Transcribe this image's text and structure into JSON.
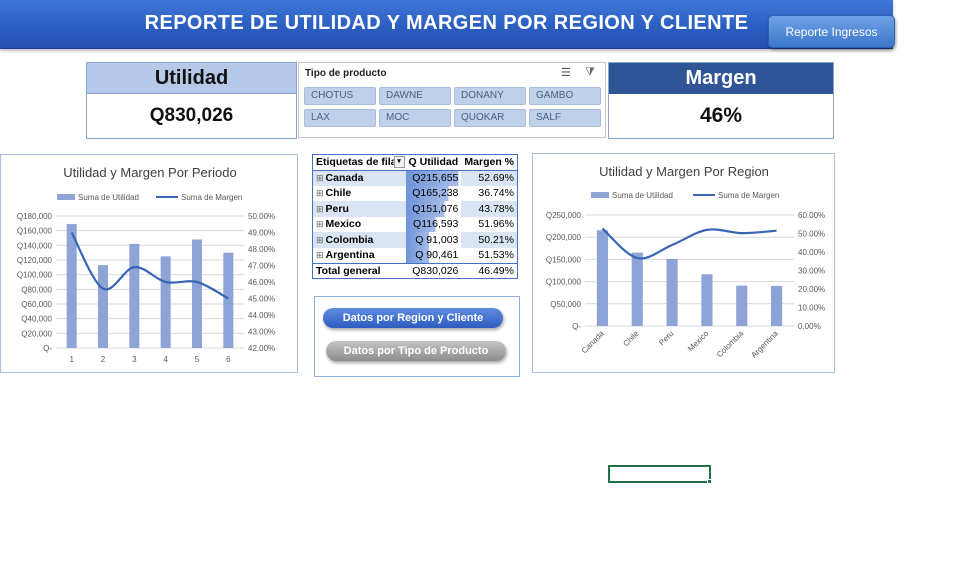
{
  "header": {
    "title": "REPORTE DE UTILIDAD Y MARGEN POR REGION Y CLIENTE",
    "button_label": "Reporte Ingresos"
  },
  "kpi": {
    "utilidad_label": "Utilidad",
    "utilidad_value": "Q830,026",
    "margen_label": "Margen",
    "margen_value": "46%"
  },
  "slicer": {
    "title": "Tipo de producto",
    "items": [
      "CHOTUS",
      "DAWNE",
      "DONANY",
      "GAMBO",
      "LAX",
      "MOC",
      "QUOKAR",
      "SALF"
    ]
  },
  "pivot": {
    "headers": [
      "Etiquetas de fila",
      "Q Utilidad",
      "Margen %"
    ],
    "rows": [
      {
        "label": "Canada",
        "utilidad": "Q215,655",
        "margen": "52.69%",
        "pct": 0.95
      },
      {
        "label": "Chile",
        "utilidad": "Q165,238",
        "margen": "36.74%",
        "pct": 0.77
      },
      {
        "label": "Peru",
        "utilidad": "Q151,076",
        "margen": "43.78%",
        "pct": 0.7
      },
      {
        "label": "Mexico",
        "utilidad": "Q116,593",
        "margen": "51.96%",
        "pct": 0.54
      },
      {
        "label": "Colombia",
        "utilidad": "Q  91,003",
        "margen": "50.21%",
        "pct": 0.42
      },
      {
        "label": "Argentina",
        "utilidad": "Q  90,461",
        "margen": "51.53%",
        "pct": 0.42
      }
    ],
    "total": {
      "label": "Total general",
      "utilidad": "Q830,026",
      "margen": "46.49%"
    }
  },
  "buttons": {
    "region": "Datos por Region y Cliente",
    "producto": "Datos por Tipo de Producto"
  },
  "chart_data": [
    {
      "type": "bar",
      "title": "Utilidad y Margen Por Periodo",
      "categories": [
        "1",
        "2",
        "3",
        "4",
        "5",
        "6"
      ],
      "series": [
        {
          "name": "Suma de Utilidad",
          "values": [
            169000,
            113000,
            142000,
            125000,
            148000,
            130000
          ],
          "axis": "left"
        },
        {
          "name": "Suma de Margen",
          "values": [
            49.0,
            45.6,
            46.9,
            46.0,
            46.0,
            45.0
          ],
          "axis": "right",
          "kind": "line"
        }
      ],
      "ylim": [
        0,
        180000
      ],
      "y2lim": [
        42.0,
        50.0
      ],
      "yticks": [
        "Q180,000",
        "Q160,000",
        "Q140,000",
        "Q120,000",
        "Q100,000",
        "Q80,000",
        "Q60,000",
        "Q40,000",
        "Q20,000",
        "Q-"
      ],
      "y2ticks": [
        "50.00%",
        "49.00%",
        "48.00%",
        "47.00%",
        "46.00%",
        "45.00%",
        "44.00%",
        "43.00%",
        "42.00%"
      ],
      "legend": "top",
      "colors": {
        "bar": "#8ea3d6",
        "line": "#3865b5"
      }
    },
    {
      "type": "bar",
      "title": "Utilidad y Margen Por Region",
      "categories": [
        "Canada",
        "Chile",
        "Peru",
        "Mexico",
        "Colombia",
        "Argentina"
      ],
      "series": [
        {
          "name": "Suma de Utilidad",
          "values": [
            215655,
            165238,
            151076,
            116593,
            91003,
            90461
          ],
          "axis": "left"
        },
        {
          "name": "Suma de Margen",
          "values": [
            52.69,
            36.74,
            43.78,
            51.96,
            50.21,
            51.53
          ],
          "axis": "right",
          "kind": "line"
        }
      ],
      "ylim": [
        0,
        250000
      ],
      "y2lim": [
        0,
        60
      ],
      "yticks": [
        "Q250,000",
        "Q200,000",
        "Q150,000",
        "Q100,000",
        "Q50,000",
        "Q-"
      ],
      "y2ticks": [
        "60.00%",
        "50.00%",
        "40.00%",
        "30.00%",
        "20.00%",
        "10.00%",
        "0.00%"
      ],
      "legend": "top",
      "colors": {
        "bar": "#8ea3d6",
        "line": "#3865b5"
      }
    }
  ]
}
